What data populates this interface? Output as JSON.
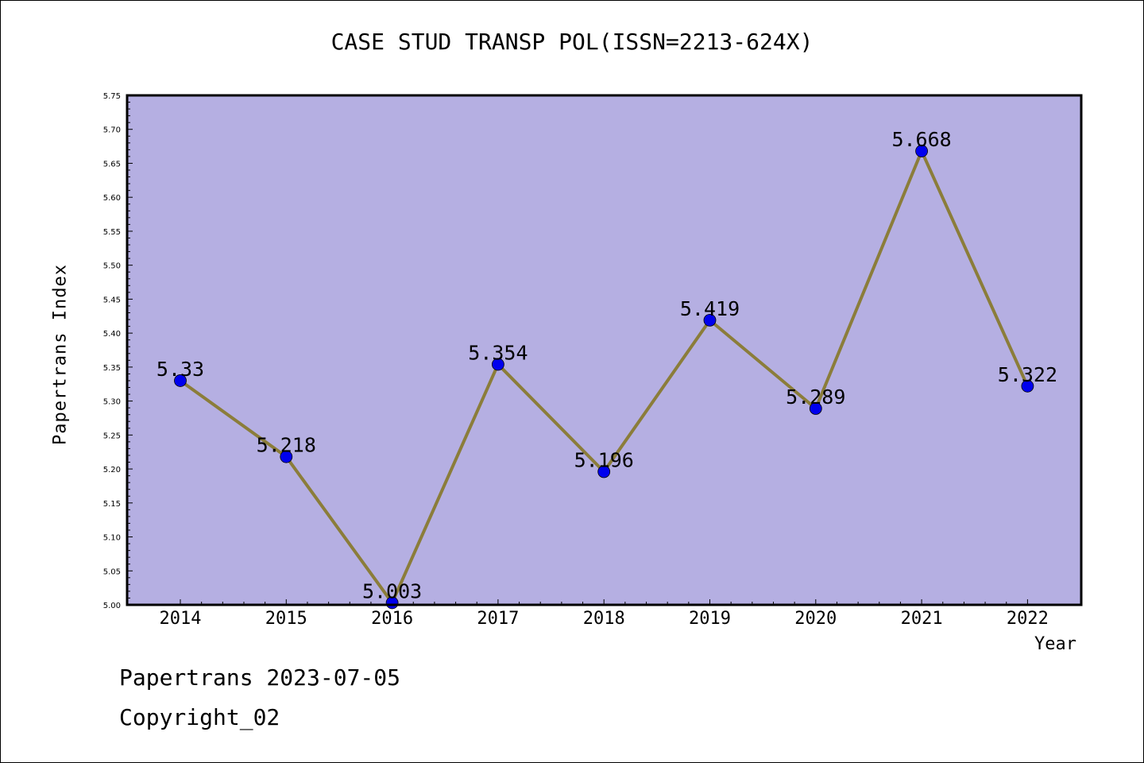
{
  "chart_data": {
    "type": "line",
    "title": "CASE STUD TRANSP POL(ISSN=2213-624X)",
    "xlabel": "Year",
    "ylabel": "Papertrans Index",
    "categories": [
      "2014",
      "2015",
      "2016",
      "2017",
      "2018",
      "2019",
      "2020",
      "2021",
      "2022"
    ],
    "series": [
      {
        "values": [
          5.33,
          5.218,
          5.003,
          5.354,
          5.196,
          5.419,
          5.289,
          5.668,
          5.322
        ],
        "data_labels": [
          "5.33",
          "5.218",
          "5.003",
          "5.354",
          "5.196",
          "5.419",
          "5.289",
          "5.668",
          "5.322"
        ]
      }
    ],
    "ylim": [
      5.0,
      5.75
    ],
    "yticks": [
      "5.00",
      "5.05",
      "5.10",
      "5.15",
      "5.20",
      "5.25",
      "5.30",
      "5.35",
      "5.40",
      "5.45",
      "5.50",
      "5.55",
      "5.60",
      "5.65",
      "5.70",
      "5.75"
    ],
    "grid": false,
    "colors": {
      "plot_background": "#b5afe2",
      "line": "#8b7d3a",
      "marker": "#0000ee"
    }
  },
  "footer": {
    "line1": "Papertrans 2023-07-05",
    "line2": "Copyright_02"
  }
}
